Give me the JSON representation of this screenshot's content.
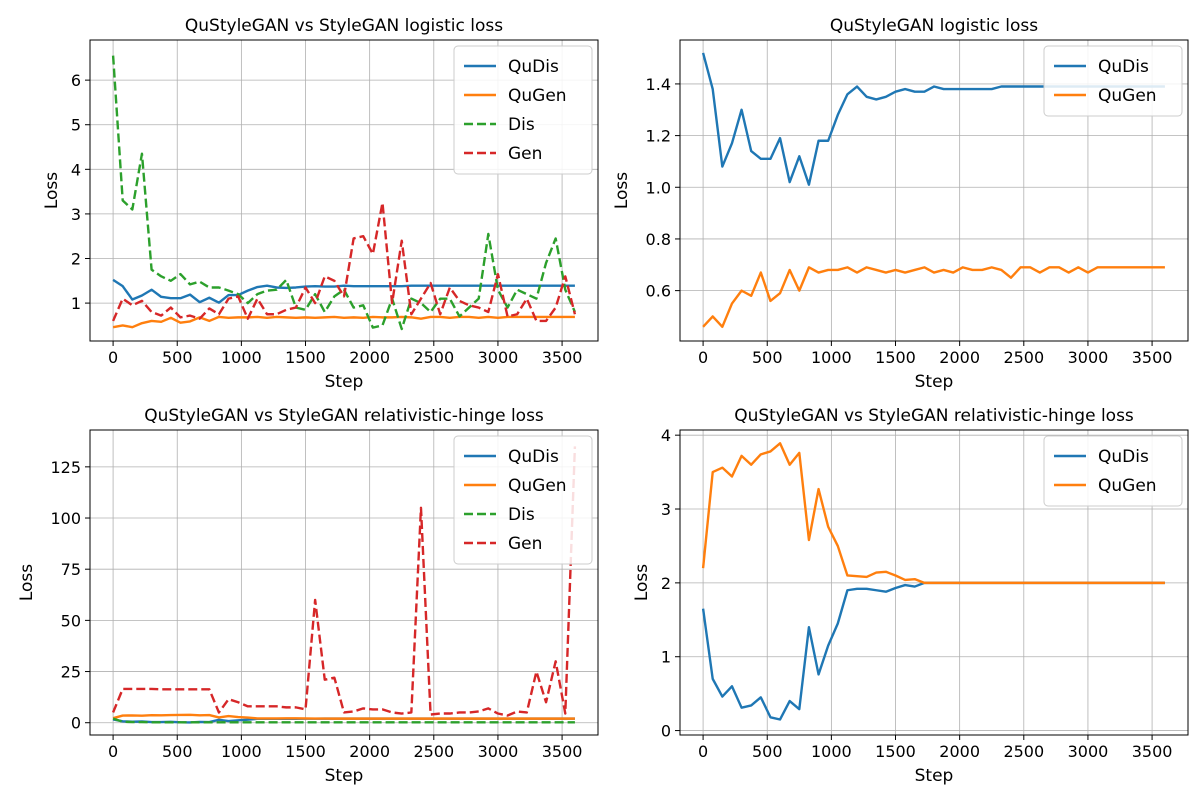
{
  "chart_data": [
    {
      "type": "line",
      "title": "QuStyleGAN vs StyleGAN logistic loss",
      "xlabel": "Step",
      "ylabel": "Loss",
      "xlim": [
        -180,
        3780
      ],
      "ylim": [
        0.15,
        6.9
      ],
      "xticks": [
        0,
        500,
        1000,
        1500,
        2000,
        2500,
        3000,
        3500
      ],
      "yticks": [
        1,
        2,
        3,
        4,
        5,
        6
      ],
      "grid": true,
      "legend": "top-right",
      "x": [
        0,
        75,
        150,
        225,
        300,
        375,
        450,
        525,
        600,
        675,
        750,
        825,
        900,
        975,
        1050,
        1125,
        1200,
        1275,
        1350,
        1425,
        1500,
        1575,
        1650,
        1725,
        1800,
        1875,
        1950,
        2025,
        2100,
        2175,
        2250,
        2325,
        2400,
        2475,
        2550,
        2625,
        2700,
        2775,
        2850,
        2925,
        3000,
        3075,
        3150,
        3225,
        3300,
        3375,
        3450,
        3525,
        3600
      ],
      "series": [
        {
          "name": "QuDis",
          "color": "#1f77b4",
          "dash": "solid",
          "values": [
            1.52,
            1.38,
            1.08,
            1.17,
            1.3,
            1.14,
            1.11,
            1.11,
            1.19,
            1.02,
            1.12,
            1.01,
            1.18,
            1.18,
            1.28,
            1.36,
            1.39,
            1.35,
            1.34,
            1.35,
            1.37,
            1.38,
            1.37,
            1.37,
            1.39,
            1.38,
            1.38,
            1.38,
            1.38,
            1.38,
            1.38,
            1.39,
            1.39,
            1.39,
            1.39,
            1.39,
            1.39,
            1.39,
            1.39,
            1.39,
            1.39,
            1.39,
            1.39,
            1.39,
            1.39,
            1.39,
            1.39,
            1.39,
            1.39
          ]
        },
        {
          "name": "QuGen",
          "color": "#ff7f0e",
          "dash": "solid",
          "values": [
            0.46,
            0.5,
            0.46,
            0.55,
            0.6,
            0.58,
            0.67,
            0.56,
            0.59,
            0.68,
            0.6,
            0.69,
            0.67,
            0.68,
            0.68,
            0.69,
            0.67,
            0.69,
            0.68,
            0.67,
            0.68,
            0.67,
            0.68,
            0.69,
            0.67,
            0.68,
            0.67,
            0.69,
            0.68,
            0.68,
            0.69,
            0.68,
            0.65,
            0.69,
            0.69,
            0.67,
            0.69,
            0.69,
            0.67,
            0.69,
            0.67,
            0.69,
            0.69,
            0.69,
            0.69,
            0.69,
            0.69,
            0.69,
            0.69
          ]
        },
        {
          "name": "Dis",
          "color": "#2ca02c",
          "dash": "dashed",
          "values": [
            6.55,
            3.3,
            3.1,
            4.35,
            1.75,
            1.6,
            1.5,
            1.65,
            1.42,
            1.48,
            1.35,
            1.35,
            1.28,
            1.2,
            1.0,
            1.2,
            1.28,
            1.3,
            1.52,
            0.9,
            0.85,
            1.2,
            0.8,
            1.15,
            1.3,
            0.9,
            0.95,
            0.45,
            0.5,
            1.1,
            0.42,
            1.1,
            1.0,
            0.8,
            1.1,
            1.1,
            0.7,
            0.9,
            1.1,
            2.55,
            1.3,
            0.9,
            1.3,
            1.2,
            1.1,
            1.9,
            2.45,
            1.3,
            0.8
          ]
        },
        {
          "name": "Gen",
          "color": "#d62728",
          "dash": "dashed",
          "values": [
            0.6,
            1.1,
            0.95,
            1.05,
            0.8,
            0.72,
            0.9,
            0.68,
            0.72,
            0.65,
            0.88,
            0.75,
            1.1,
            1.15,
            0.65,
            1.1,
            0.75,
            0.75,
            0.85,
            0.9,
            1.35,
            1.0,
            1.6,
            1.5,
            1.15,
            2.45,
            2.5,
            2.1,
            3.25,
            1.0,
            2.4,
            0.75,
            1.1,
            1.45,
            0.75,
            1.35,
            1.05,
            0.95,
            0.9,
            0.8,
            1.65,
            0.7,
            0.75,
            1.1,
            0.6,
            0.6,
            0.9,
            1.6,
            0.75
          ]
        }
      ]
    },
    {
      "type": "line",
      "title": "QuStyleGAN logistic loss",
      "xlabel": "Step",
      "ylabel": "Loss",
      "xlim": [
        -180,
        3780
      ],
      "ylim": [
        0.405,
        1.57
      ],
      "xticks": [
        0,
        500,
        1000,
        1500,
        2000,
        2500,
        3000,
        3500
      ],
      "yticks": [
        0.6,
        0.8,
        1.0,
        1.2,
        1.4
      ],
      "ytick_labels": [
        "0.6",
        "0.8",
        "1.0",
        "1.2",
        "1.4"
      ],
      "grid": true,
      "legend": "top-right",
      "x": [
        0,
        75,
        150,
        225,
        300,
        375,
        450,
        525,
        600,
        675,
        750,
        825,
        900,
        975,
        1050,
        1125,
        1200,
        1275,
        1350,
        1425,
        1500,
        1575,
        1650,
        1725,
        1800,
        1875,
        1950,
        2025,
        2100,
        2175,
        2250,
        2325,
        2400,
        2475,
        2550,
        2625,
        2700,
        2775,
        2850,
        2925,
        3000,
        3075,
        3150,
        3225,
        3300,
        3375,
        3450,
        3525,
        3600
      ],
      "series": [
        {
          "name": "QuDis",
          "color": "#1f77b4",
          "dash": "solid",
          "values": [
            1.52,
            1.38,
            1.08,
            1.17,
            1.3,
            1.14,
            1.11,
            1.11,
            1.19,
            1.02,
            1.12,
            1.01,
            1.18,
            1.18,
            1.28,
            1.36,
            1.39,
            1.35,
            1.34,
            1.35,
            1.37,
            1.38,
            1.37,
            1.37,
            1.39,
            1.38,
            1.38,
            1.38,
            1.38,
            1.38,
            1.38,
            1.39,
            1.39,
            1.39,
            1.39,
            1.39,
            1.39,
            1.39,
            1.39,
            1.39,
            1.39,
            1.39,
            1.39,
            1.39,
            1.39,
            1.39,
            1.39,
            1.39,
            1.39
          ]
        },
        {
          "name": "QuGen",
          "color": "#ff7f0e",
          "dash": "solid",
          "values": [
            0.46,
            0.5,
            0.46,
            0.55,
            0.6,
            0.58,
            0.67,
            0.56,
            0.59,
            0.68,
            0.6,
            0.69,
            0.67,
            0.68,
            0.68,
            0.69,
            0.67,
            0.69,
            0.68,
            0.67,
            0.68,
            0.67,
            0.68,
            0.69,
            0.67,
            0.68,
            0.67,
            0.69,
            0.68,
            0.68,
            0.69,
            0.68,
            0.65,
            0.69,
            0.69,
            0.67,
            0.69,
            0.69,
            0.67,
            0.69,
            0.67,
            0.69,
            0.69,
            0.69,
            0.69,
            0.69,
            0.69,
            0.69,
            0.69
          ]
        }
      ]
    },
    {
      "type": "line",
      "title": "QuStyleGAN vs StyleGAN relativistic-hinge loss",
      "xlabel": "Step",
      "ylabel": "Loss",
      "xlim": [
        -180,
        3780
      ],
      "ylim": [
        -6,
        143
      ],
      "xticks": [
        0,
        500,
        1000,
        1500,
        2000,
        2500,
        3000,
        3500
      ],
      "yticks": [
        0,
        25,
        50,
        75,
        100,
        125
      ],
      "grid": true,
      "legend": "top-right",
      "x": [
        0,
        75,
        150,
        225,
        300,
        375,
        450,
        525,
        600,
        675,
        750,
        825,
        900,
        975,
        1050,
        1125,
        1200,
        1275,
        1350,
        1425,
        1500,
        1575,
        1650,
        1725,
        1800,
        1875,
        1950,
        2025,
        2100,
        2175,
        2250,
        2325,
        2400,
        2475,
        2550,
        2625,
        2700,
        2775,
        2850,
        2925,
        3000,
        3075,
        3150,
        3225,
        3300,
        3375,
        3450,
        3525,
        3600
      ],
      "series": [
        {
          "name": "QuDis",
          "color": "#1f77b4",
          "dash": "solid",
          "values": [
            1.6,
            0.7,
            0.5,
            0.6,
            0.3,
            0.3,
            0.45,
            0.2,
            0.15,
            0.4,
            0.3,
            1.4,
            0.8,
            1.2,
            1.5,
            1.9,
            1.9,
            1.9,
            1.9,
            1.9,
            1.95,
            1.95,
            2.0,
            2.0,
            2.0,
            2.0,
            2.0,
            2.0,
            2.0,
            2.0,
            2.0,
            2.0,
            2.0,
            2.0,
            2.0,
            2.0,
            2.0,
            2.0,
            2.0,
            2.0,
            2.0,
            2.0,
            2.0,
            2.0,
            2.0,
            2.0,
            2.0,
            2.0,
            2.0
          ]
        },
        {
          "name": "QuGen",
          "color": "#ff7f0e",
          "dash": "solid",
          "values": [
            2.2,
            3.5,
            3.55,
            3.45,
            3.7,
            3.6,
            3.75,
            3.8,
            3.85,
            3.6,
            3.75,
            2.6,
            3.25,
            2.75,
            2.5,
            2.1,
            2.1,
            2.1,
            2.15,
            2.15,
            2.1,
            2.05,
            2.05,
            2.0,
            2.0,
            2.0,
            2.0,
            2.0,
            2.0,
            2.0,
            2.0,
            2.0,
            2.0,
            2.0,
            2.0,
            2.0,
            2.0,
            2.0,
            2.0,
            2.0,
            2.0,
            2.0,
            2.0,
            2.0,
            2.0,
            2.0,
            2.0,
            2.0,
            2.0
          ]
        },
        {
          "name": "Dis",
          "color": "#2ca02c",
          "dash": "dashed",
          "values": [
            2.0,
            0.5,
            0.3,
            0.3,
            0.2,
            0.2,
            0.2,
            0.2,
            0.2,
            0.2,
            0.2,
            0.2,
            0.2,
            0.2,
            0.2,
            0.2,
            0.2,
            0.2,
            0.2,
            0.2,
            0.2,
            0.2,
            0.2,
            0.2,
            0.2,
            0.2,
            0.2,
            0.2,
            0.2,
            0.2,
            0.2,
            0.2,
            0.2,
            0.2,
            0.2,
            0.2,
            0.2,
            0.2,
            0.2,
            0.2,
            0.2,
            0.2,
            0.2,
            0.2,
            0.2,
            0.2,
            0.2,
            0.2,
            0.2
          ]
        },
        {
          "name": "Gen",
          "color": "#d62728",
          "dash": "dashed",
          "values": [
            5.0,
            16.5,
            16.5,
            16.5,
            16.5,
            16.3,
            16.3,
            16.3,
            16.3,
            16.3,
            16.3,
            5.0,
            11.5,
            10.0,
            8.0,
            8.0,
            8.0,
            8.0,
            7.5,
            7.5,
            6.5,
            60.0,
            21.0,
            22.0,
            5.0,
            5.5,
            7.0,
            6.5,
            6.5,
            5.0,
            4.5,
            5.0,
            105.0,
            4.0,
            4.5,
            4.5,
            5.0,
            5.0,
            5.5,
            7.0,
            4.5,
            3.5,
            5.5,
            5.0,
            25.0,
            10.0,
            30.0,
            4.5,
            135.0
          ]
        }
      ]
    },
    {
      "type": "line",
      "title": "QuStyleGAN vs StyleGAN relativistic-hinge loss",
      "xlabel": "Step",
      "ylabel": "Loss",
      "xlim": [
        -180,
        3780
      ],
      "ylim": [
        -0.06,
        4.07
      ],
      "xticks": [
        0,
        500,
        1000,
        1500,
        2000,
        2500,
        3000,
        3500
      ],
      "yticks": [
        0,
        1,
        2,
        3,
        4
      ],
      "grid": true,
      "legend": "top-right",
      "x": [
        0,
        75,
        150,
        225,
        300,
        375,
        450,
        525,
        600,
        675,
        750,
        825,
        900,
        975,
        1050,
        1125,
        1200,
        1275,
        1350,
        1425,
        1500,
        1575,
        1650,
        1725,
        1800,
        1875,
        1950,
        2025,
        2100,
        2175,
        2250,
        2325,
        2400,
        2475,
        2550,
        2625,
        2700,
        2775,
        2850,
        2925,
        3000,
        3075,
        3150,
        3225,
        3300,
        3375,
        3450,
        3525,
        3600
      ],
      "series": [
        {
          "name": "QuDis",
          "color": "#1f77b4",
          "dash": "solid",
          "values": [
            1.65,
            0.7,
            0.46,
            0.6,
            0.31,
            0.34,
            0.45,
            0.18,
            0.15,
            0.4,
            0.29,
            1.4,
            0.76,
            1.15,
            1.45,
            1.9,
            1.92,
            1.92,
            1.9,
            1.88,
            1.93,
            1.97,
            1.95,
            2.0,
            2.0,
            2.0,
            2.0,
            2.0,
            2.0,
            2.0,
            2.0,
            2.0,
            2.0,
            2.0,
            2.0,
            2.0,
            2.0,
            2.0,
            2.0,
            2.0,
            2.0,
            2.0,
            2.0,
            2.0,
            2.0,
            2.0,
            2.0,
            2.0,
            2.0
          ]
        },
        {
          "name": "QuGen",
          "color": "#ff7f0e",
          "dash": "solid",
          "values": [
            2.2,
            3.5,
            3.56,
            3.44,
            3.72,
            3.6,
            3.74,
            3.78,
            3.89,
            3.6,
            3.76,
            2.58,
            3.27,
            2.76,
            2.5,
            2.1,
            2.09,
            2.08,
            2.14,
            2.15,
            2.1,
            2.04,
            2.05,
            2.0,
            2.0,
            2.0,
            2.0,
            2.0,
            2.0,
            2.0,
            2.0,
            2.0,
            2.0,
            2.0,
            2.0,
            2.0,
            2.0,
            2.0,
            2.0,
            2.0,
            2.0,
            2.0,
            2.0,
            2.0,
            2.0,
            2.0,
            2.0,
            2.0,
            2.0
          ]
        }
      ]
    }
  ]
}
